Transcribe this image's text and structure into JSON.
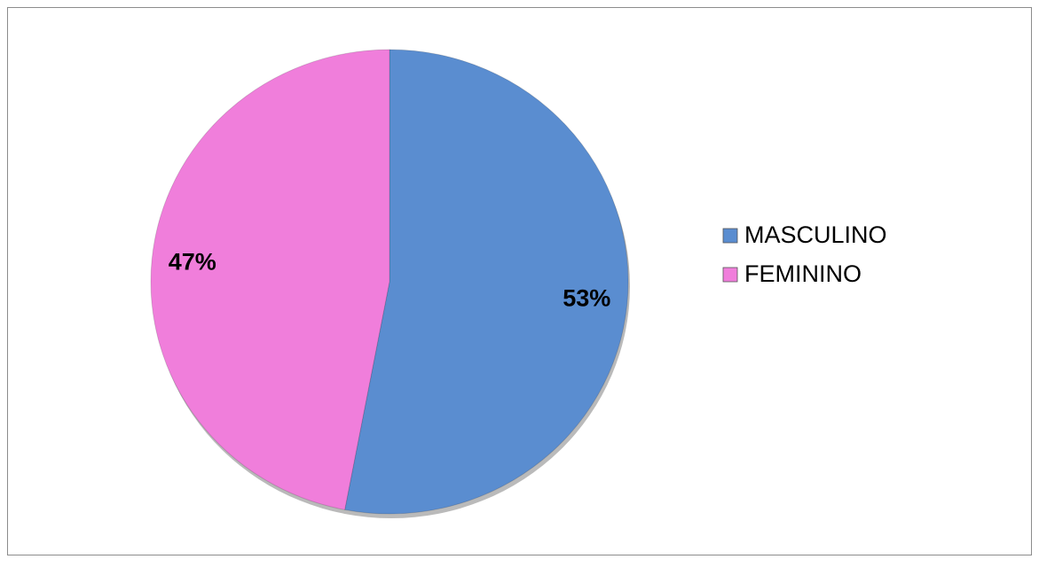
{
  "chart_data": {
    "type": "pie",
    "categories": [
      "MASCULINO",
      "FEMININO"
    ],
    "values": [
      53,
      47
    ],
    "value_labels": [
      "53%",
      "47%"
    ],
    "colors": [
      "#5a8dd0",
      "#f07edb"
    ],
    "legend": "right"
  }
}
